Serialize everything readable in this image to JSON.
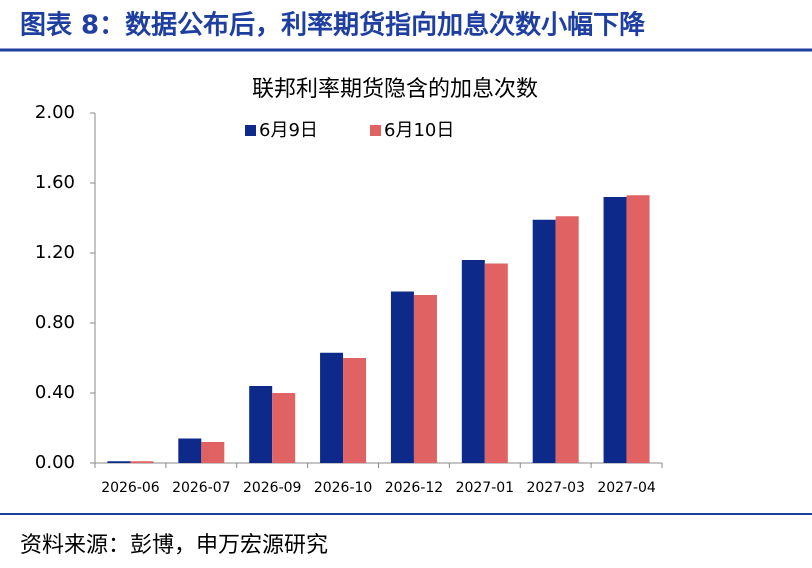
{
  "page": {
    "title": "图表 8：数据公布后，利率期货指向加息次数小幅下降",
    "source": "资料来源：彭博，申万宏源研究"
  },
  "chart_data": {
    "type": "bar",
    "title": "联邦利率期货隐含的加息次数",
    "categories": [
      "2026-06",
      "2026-07",
      "2026-09",
      "2026-10",
      "2026-12",
      "2027-01",
      "2027-03",
      "2027-04"
    ],
    "series": [
      {
        "name": "6月9日",
        "color": "#0d2a8a",
        "values": [
          0.01,
          0.14,
          0.44,
          0.63,
          0.98,
          1.16,
          1.39,
          1.52
        ]
      },
      {
        "name": "6月10日",
        "color": "#e06262",
        "values": [
          0.01,
          0.12,
          0.4,
          0.6,
          0.96,
          1.14,
          1.41,
          1.53
        ]
      }
    ],
    "ylim": [
      0,
      2
    ],
    "yticks": [
      {
        "value": 0,
        "label": "0.00"
      },
      {
        "value": 0.4,
        "label": "0.40"
      },
      {
        "value": 0.8,
        "label": "0.80"
      },
      {
        "value": 1.2,
        "label": "1.20"
      },
      {
        "value": 1.6,
        "label": "1.60"
      },
      {
        "value": 2,
        "label": "2.00"
      }
    ],
    "grid": false,
    "legend": "top"
  }
}
